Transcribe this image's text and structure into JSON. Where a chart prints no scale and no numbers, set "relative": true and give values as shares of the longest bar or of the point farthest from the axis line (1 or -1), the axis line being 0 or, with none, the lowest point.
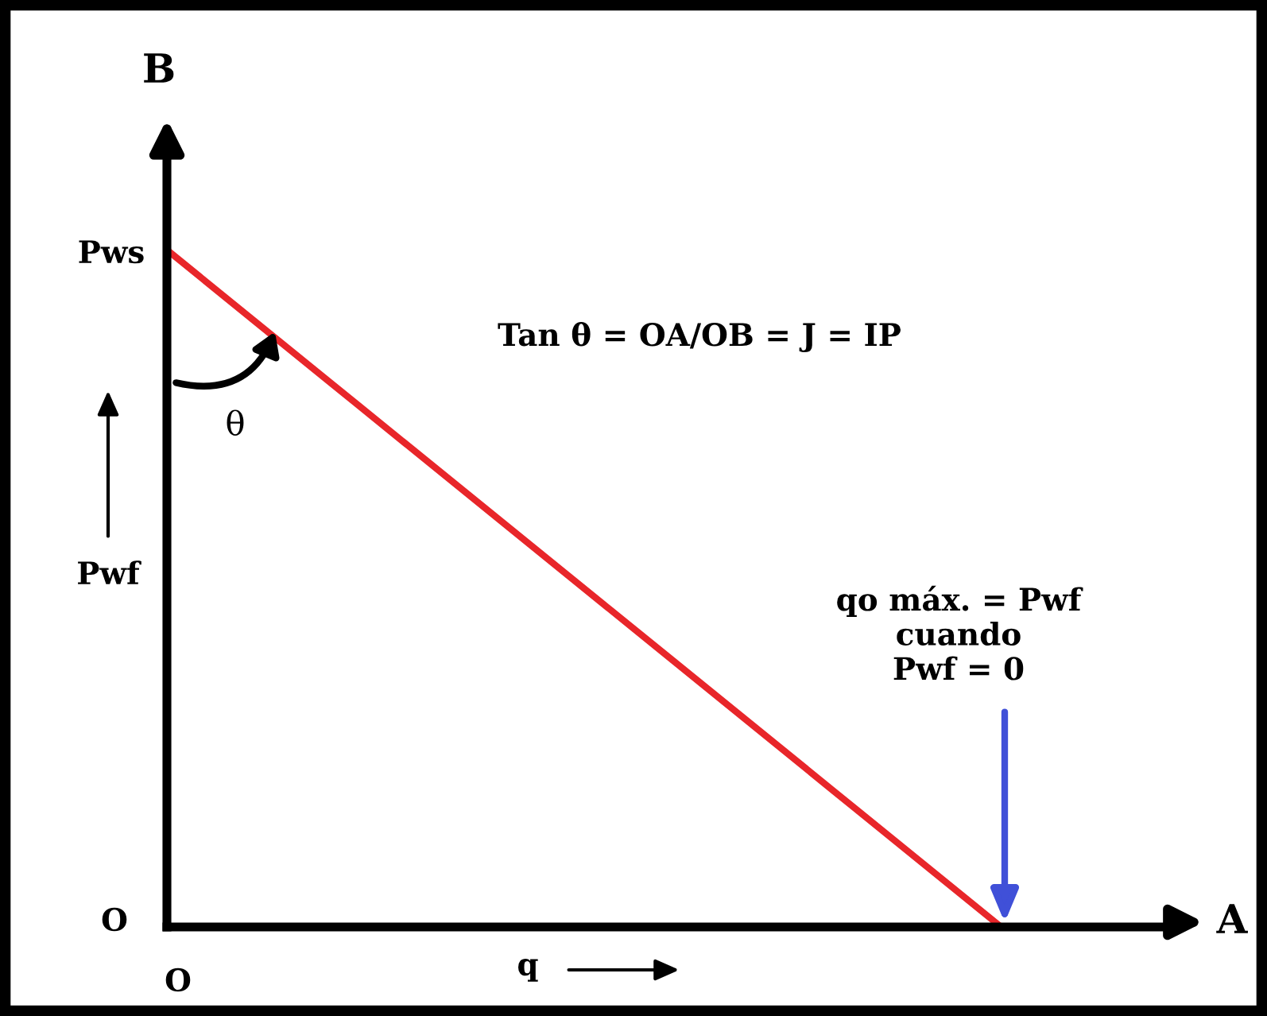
{
  "chart_data": {
    "type": "line",
    "relative": true,
    "xlabel": "q",
    "ylabel": "Pwf",
    "categories": [
      null,
      null,
      null,
      null,
      null,
      null,
      null
    ],
    "series": [
      {
        "color": "#e8262a",
        "values": [
          1,
          0.8,
          0.6,
          0.4,
          0.2,
          0,
          null
        ]
      }
    ],
    "annotations": [
      "B",
      "A",
      "Pws",
      "O",
      "O",
      "θ",
      "Tan θ = OA/OB = J = IP",
      "qo máx. = Pwf\ncuando\nPwf = 0"
    ],
    "marker": "none",
    "line_style": "solid"
  }
}
